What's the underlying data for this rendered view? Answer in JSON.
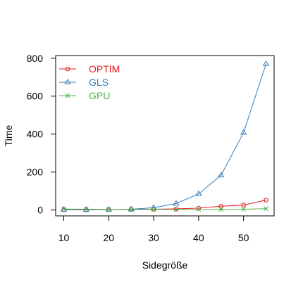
{
  "chart_data": {
    "type": "line",
    "title": "",
    "xlabel": "Sidegröße",
    "ylabel": "Time",
    "x": [
      10,
      15,
      20,
      25,
      30,
      35,
      40,
      45,
      50,
      55
    ],
    "xlim": [
      8.2,
      56.8
    ],
    "ylim": [
      -31,
      814
    ],
    "xticks": [
      "10",
      "20",
      "30",
      "40",
      "50"
    ],
    "yticks": [
      "0",
      "200",
      "400",
      "600",
      "800"
    ],
    "grid": false,
    "legend_position": "top-left",
    "series": [
      {
        "name": "OPTIM",
        "color": "#E41A1C",
        "marker": "circle",
        "values": [
          1,
          1,
          2,
          3,
          4,
          6,
          10,
          20,
          26,
          52
        ]
      },
      {
        "name": "GLS",
        "color": "#377EB8",
        "marker": "triangle",
        "values": [
          2,
          2,
          2,
          4,
          12,
          34,
          85,
          183,
          408,
          770
        ]
      },
      {
        "name": "GPU",
        "color": "#4DAF4A",
        "marker": "cross",
        "values": [
          5,
          4,
          3,
          3,
          3,
          3,
          3,
          3,
          4,
          7
        ]
      }
    ]
  }
}
